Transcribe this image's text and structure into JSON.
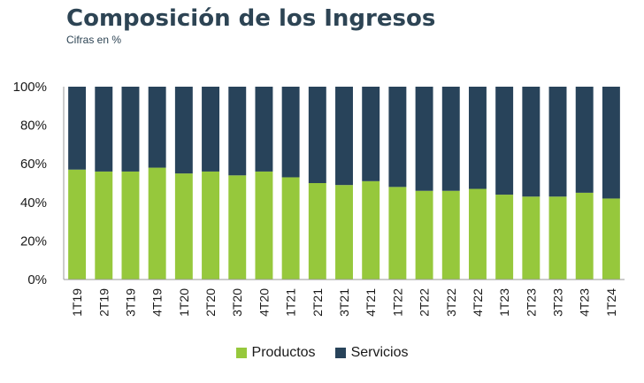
{
  "colors": {
    "productos": "#96c83c",
    "servicios": "#28435a",
    "title": "#2d4454"
  },
  "chart_data": {
    "type": "bar",
    "stacked": true,
    "title": "Composición de los Ingresos",
    "subtitle": "Cifras en %",
    "categories": [
      "1T19",
      "2T19",
      "3T19",
      "4T19",
      "1T20",
      "2T20",
      "3T20",
      "4T20",
      "1T21",
      "2T21",
      "3T21",
      "4T21",
      "1T22",
      "2T22",
      "3T22",
      "4T22",
      "1T23",
      "2T23",
      "3T23",
      "4T23",
      "1T24"
    ],
    "series": [
      {
        "name": "Productos",
        "values": [
          57,
          56,
          56,
          58,
          55,
          56,
          54,
          56,
          53,
          50,
          49,
          51,
          48,
          46,
          46,
          47,
          44,
          43,
          43,
          45,
          42
        ]
      },
      {
        "name": "Servicios",
        "values": [
          43,
          44,
          44,
          42,
          45,
          44,
          46,
          44,
          47,
          50,
          51,
          49,
          52,
          54,
          54,
          53,
          56,
          57,
          57,
          55,
          58
        ]
      }
    ],
    "ylim": [
      0,
      100
    ],
    "yticks": [
      "0%",
      "20%",
      "40%",
      "60%",
      "80%",
      "100%"
    ],
    "grid": false,
    "legend": "bottom"
  }
}
